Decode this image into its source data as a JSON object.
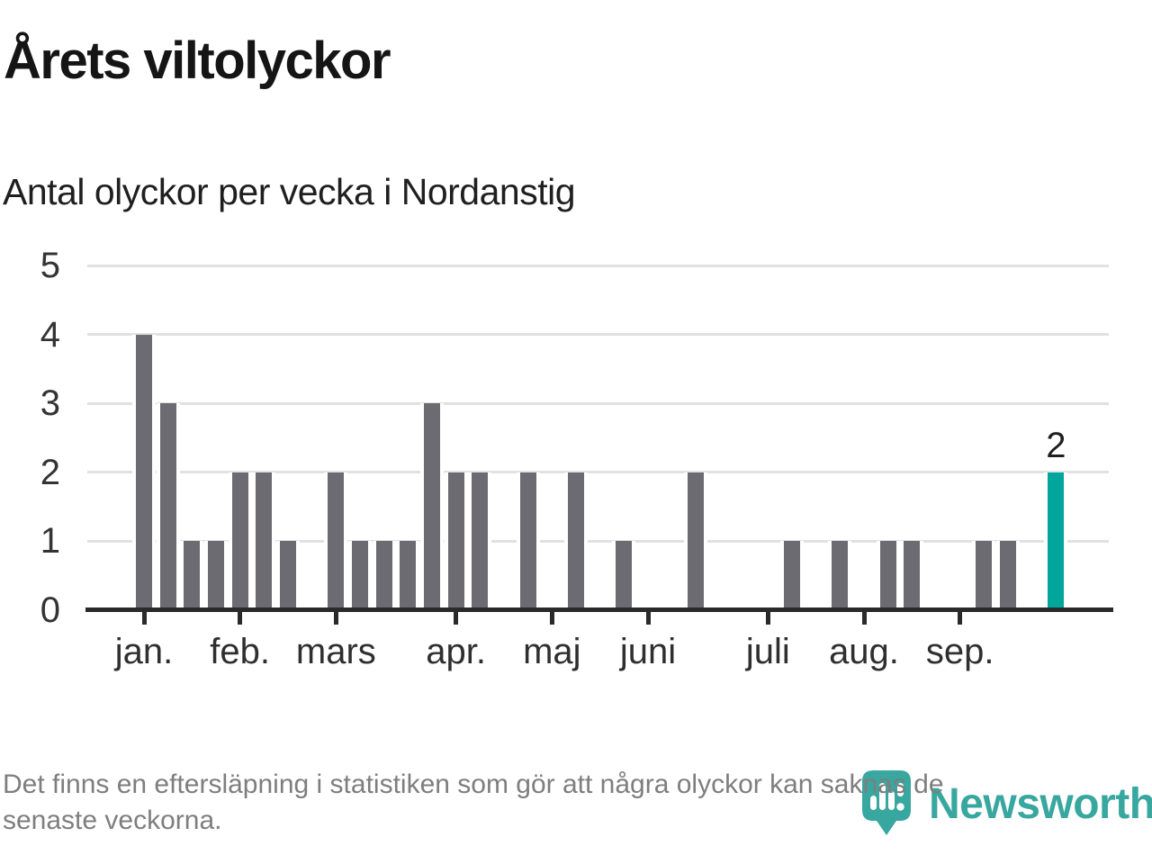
{
  "title": "Årets viltolyckor",
  "subtitle": "Antal olyckor per vecka i Nordanstig",
  "footer": {
    "line1": "Det finns en eftersläpning i statistiken som gör att några olyckor kan saknas de",
    "line2": "senaste veckorna."
  },
  "logo": {
    "brand": "Newsworthy"
  },
  "colors": {
    "bar": "#6b6b71",
    "highlight": "#00a69b",
    "logo_teal": "#38a79f",
    "axis": "#2a2a2a",
    "gridline": "#e1e1e1",
    "footnote_gray": "#7e7e7e"
  },
  "chart_data": {
    "type": "bar",
    "title": "Årets viltolyckor",
    "subtitle": "Antal olyckor per vecka i Nordanstig",
    "x_unit": "vecka (week of year)",
    "categories_note": "one bar per week, weeks 1-39",
    "values": [
      4,
      3,
      1,
      1,
      2,
      2,
      1,
      0,
      2,
      1,
      1,
      1,
      3,
      2,
      2,
      0,
      2,
      0,
      2,
      0,
      1,
      0,
      0,
      2,
      0,
      0,
      0,
      1,
      0,
      1,
      0,
      1,
      1,
      0,
      0,
      1,
      1,
      0,
      2
    ],
    "highlight_last": true,
    "last_value_label": "2",
    "ylim": [
      0,
      5
    ],
    "yticks": [
      0,
      1,
      2,
      3,
      4,
      5
    ],
    "month_ticks": [
      {
        "label": "jan.",
        "week": 1
      },
      {
        "label": "feb.",
        "week": 5
      },
      {
        "label": "mars",
        "week": 9
      },
      {
        "label": "apr.",
        "week": 14
      },
      {
        "label": "maj",
        "week": 18
      },
      {
        "label": "juni",
        "week": 22
      },
      {
        "label": "juli",
        "week": 27
      },
      {
        "label": "aug.",
        "week": 31
      },
      {
        "label": "sep.",
        "week": 35
      }
    ],
    "grid": true,
    "legend": "none"
  }
}
